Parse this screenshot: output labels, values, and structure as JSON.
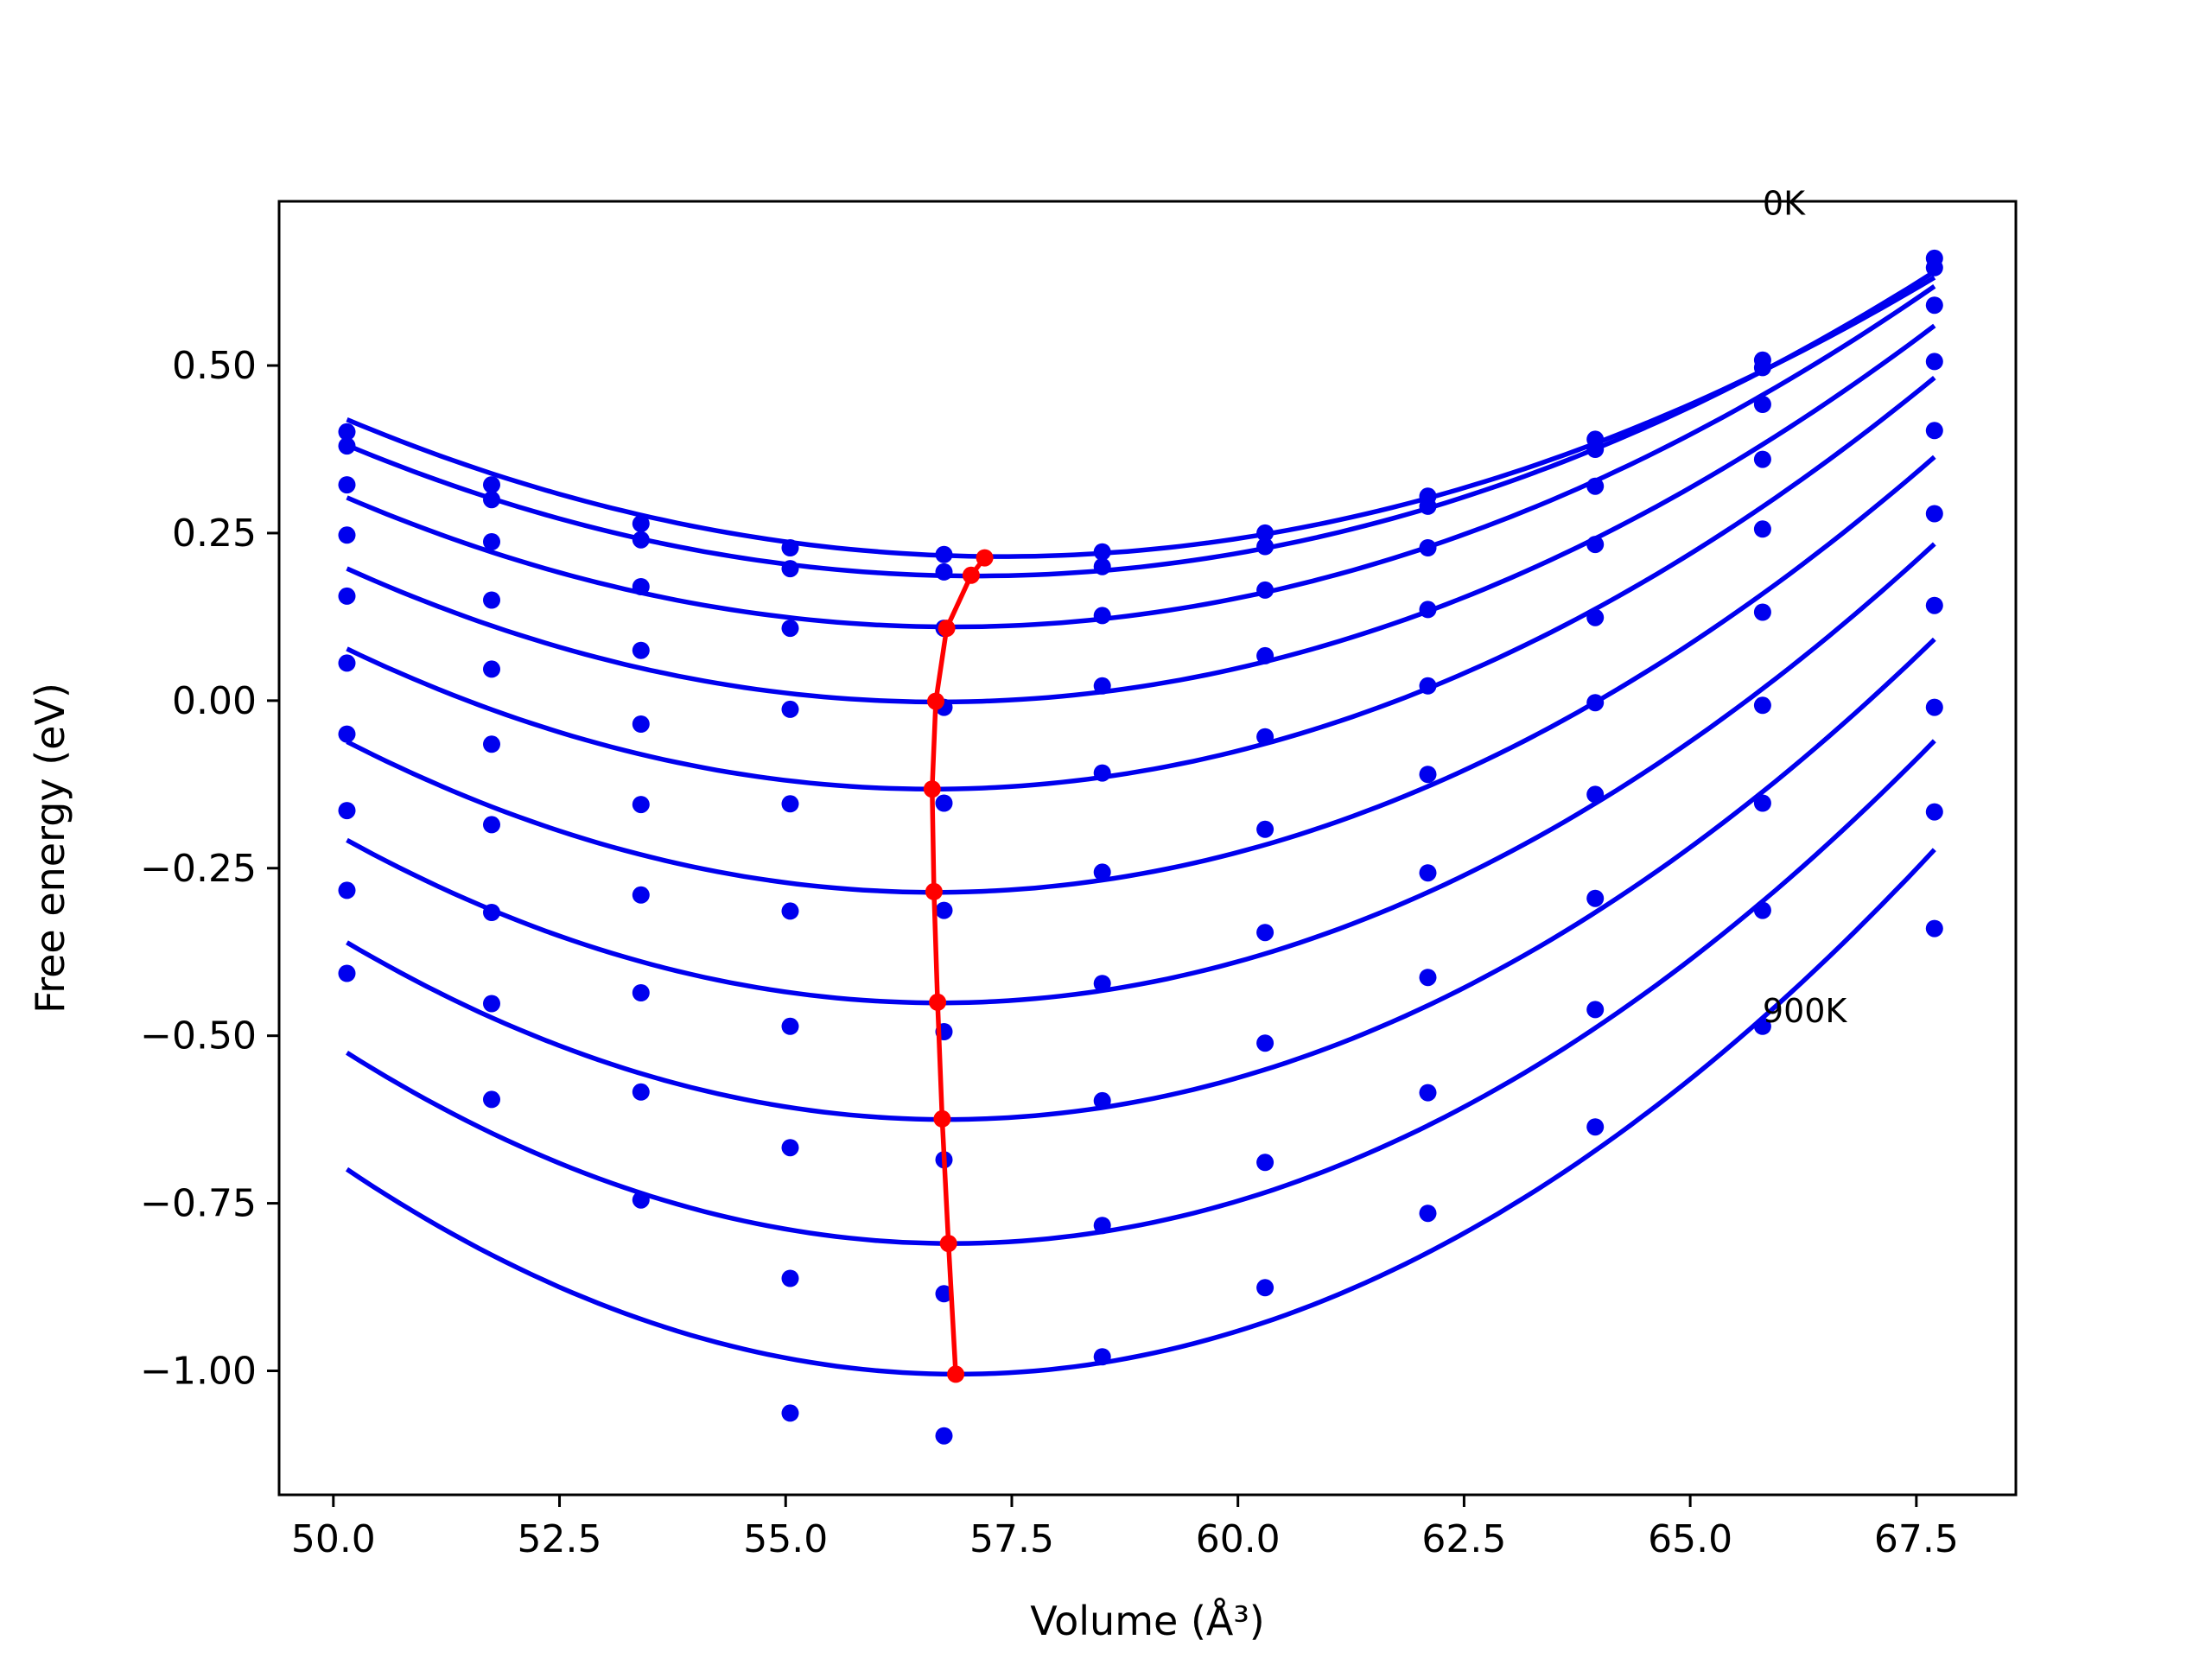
{
  "chart_data": {
    "type": "line",
    "xlabel": "Volume (Å³)",
    "ylabel": "Free energy (eV)",
    "xlim": [
      49.4,
      68.6
    ],
    "ylim": [
      -1.185,
      0.745
    ],
    "x_ticks": [
      50.0,
      52.5,
      55.0,
      57.5,
      60.0,
      62.5,
      65.0,
      67.5
    ],
    "y_ticks": [
      -1.0,
      -0.75,
      -0.5,
      -0.25,
      0.0,
      0.25,
      0.5
    ],
    "x_tick_labels": [
      "50.0",
      "52.5",
      "55.0",
      "57.5",
      "60.0",
      "62.5",
      "65.0",
      "67.5"
    ],
    "y_tick_labels": [
      "−1.00",
      "−0.75",
      "−0.50",
      "−0.25",
      "0.00",
      "0.25",
      "0.50"
    ],
    "grid": false,
    "annotations": [
      {
        "text": "0K",
        "x": 65.8,
        "y": 0.725
      },
      {
        "text": "900K",
        "x": 65.8,
        "y": -0.48
      }
    ],
    "colors": {
      "fits": "#0000ee",
      "points": "#0000ee",
      "minimum_line": "#ff0000"
    },
    "x_points": [
      50.15,
      51.75,
      53.4,
      55.05,
      56.75,
      58.5,
      60.3,
      62.1,
      63.95,
      65.8,
      67.7
    ],
    "fit_x_range": [
      50.15,
      67.7
    ],
    "series": [
      {
        "points": [
          0.401,
          0.322,
          0.264,
          0.228,
          0.218,
          0.222,
          0.25,
          0.305,
          0.39,
          0.508,
          0.66
        ],
        "fit": {
          "a": 0.00391,
          "v0": 57.38,
          "e0": 0.215
        }
      },
      {
        "points": [
          0.38,
          0.3,
          0.24,
          0.197,
          0.192,
          0.2,
          0.23,
          0.29,
          0.375,
          0.497,
          0.646
        ],
        "fit": {
          "a": 0.00404,
          "v0": 57.1,
          "e0": 0.186
        }
      },
      {
        "points": [
          0.322,
          0.237,
          0.17,
          0.108,
          0.108,
          0.127,
          0.165,
          0.228,
          0.32,
          0.442,
          0.59
        ],
        "fit": {
          "a": 0.00431,
          "v0": 56.84,
          "e0": 0.11
        }
      },
      {
        "points": [
          0.247,
          0.15,
          0.075,
          -0.013,
          -0.01,
          0.022,
          0.067,
          0.136,
          0.233,
          0.36,
          0.506
        ],
        "fit": {
          "a": 0.00464,
          "v0": 56.7,
          "e0": -0.002
        }
      },
      {
        "points": [
          0.156,
          0.047,
          -0.035,
          -0.154,
          -0.153,
          -0.108,
          -0.054,
          0.022,
          0.124,
          0.256,
          0.403
        ],
        "fit": {
          "a": 0.005,
          "v0": 56.62,
          "e0": -0.132
        }
      },
      {
        "points": [
          0.056,
          -0.065,
          -0.155,
          -0.314,
          -0.313,
          -0.256,
          -0.192,
          -0.11,
          -0.003,
          0.132,
          0.279
        ],
        "fit": {
          "a": 0.00532,
          "v0": 56.65,
          "e0": -0.286
        }
      },
      {
        "points": [
          -0.05,
          -0.185,
          -0.29,
          -0.486,
          -0.494,
          -0.422,
          -0.346,
          -0.257,
          -0.14,
          -0.007,
          0.142
        ],
        "fit": {
          "a": 0.00566,
          "v0": 56.7,
          "e0": -0.451
        }
      },
      {
        "points": [
          -0.164,
          -0.316,
          -0.436,
          -0.667,
          -0.685,
          -0.597,
          -0.511,
          -0.413,
          -0.295,
          -0.153,
          -0.01
        ],
        "fit": {
          "a": 0.00601,
          "v0": 56.78,
          "e0": -0.625
        }
      },
      {
        "points": [
          -0.283,
          -0.452,
          -0.584,
          -0.862,
          -0.885,
          -0.783,
          -0.689,
          -0.585,
          -0.461,
          -0.313,
          -0.166
        ],
        "fit": {
          "a": 0.00636,
          "v0": 56.84,
          "e0": -0.81
        }
      },
      {
        "points": [
          -0.407,
          -0.595,
          -0.745,
          -1.063,
          -1.097,
          -0.979,
          -0.876,
          -0.765,
          -0.636,
          -0.486,
          -0.34
        ],
        "fit": {
          "a": 0.00671,
          "v0": 56.9,
          "e0": -1.005
        }
      }
    ],
    "minimum_line": {
      "x": [
        57.2,
        57.05,
        56.78,
        56.66,
        56.62,
        56.64,
        56.68,
        56.73,
        56.8,
        56.88
      ],
      "y": [
        0.213,
        0.187,
        0.108,
        -0.001,
        -0.132,
        -0.285,
        -0.45,
        -0.624,
        -0.81,
        -1.005
      ]
    }
  }
}
